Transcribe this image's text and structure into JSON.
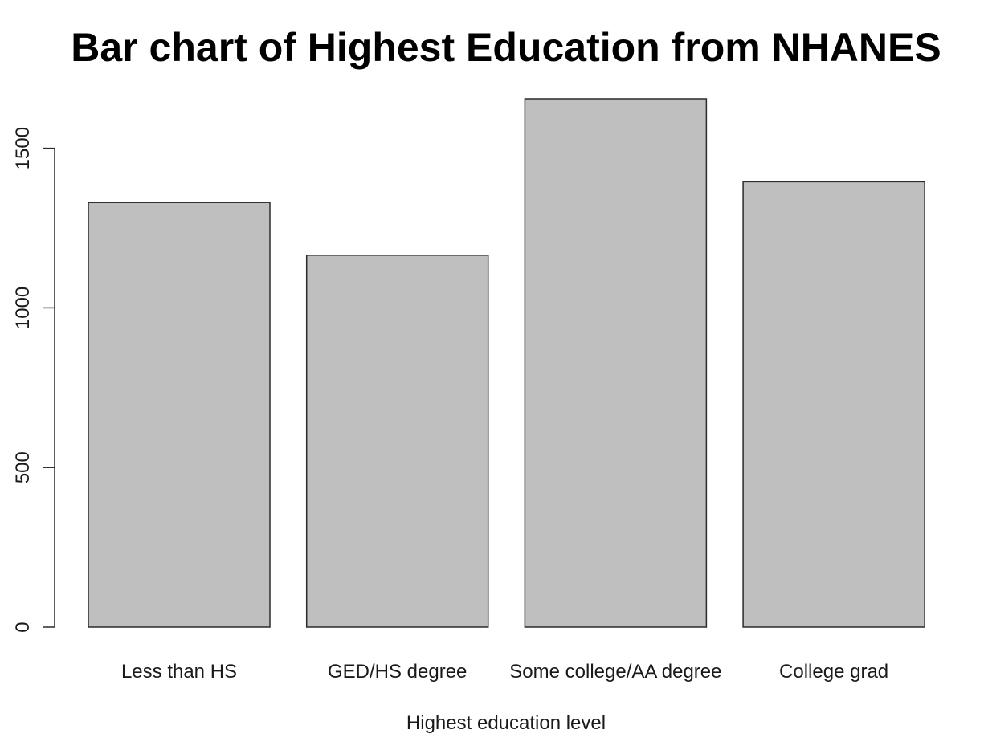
{
  "chart_data": {
    "type": "bar",
    "title": "Bar chart of Highest Education from NHANES",
    "xlabel": "Highest education level",
    "ylabel": "",
    "categories": [
      "Less than HS",
      "GED/HS degree",
      "Some college/AA degree",
      "College grad"
    ],
    "values": [
      1330,
      1165,
      1655,
      1395
    ],
    "yticks": [
      0,
      500,
      1000,
      1500
    ],
    "ylim": [
      0,
      1655
    ],
    "grid": false,
    "legend": "none",
    "colors": {
      "bar_fill": "#c0bfc0",
      "bar_stroke": "#2b2b2b",
      "background": "#ffffff"
    }
  }
}
